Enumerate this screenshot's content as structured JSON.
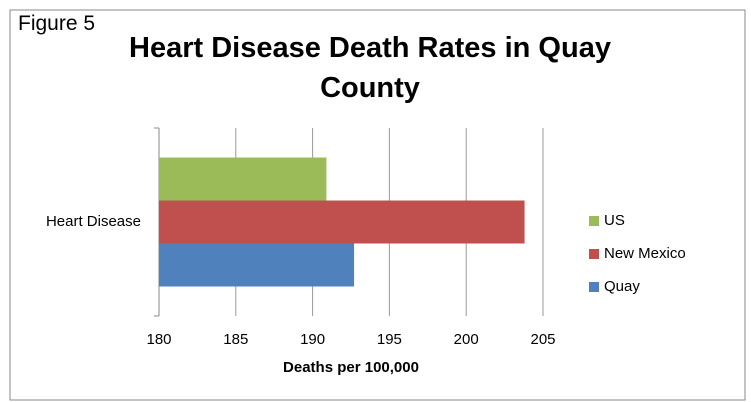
{
  "chart_data": {
    "type": "bar",
    "orientation": "horizontal",
    "annotation": "Figure 5",
    "title": "Heart Disease Death Rates in Quay County",
    "x_label": "Deaths per 100,000",
    "categories": [
      "Heart Disease"
    ],
    "series": [
      {
        "name": "US",
        "color": "#9bbb59",
        "values": [
          190.9
        ]
      },
      {
        "name": "New Mexico",
        "color": "#c0504d",
        "values": [
          203.8
        ]
      },
      {
        "name": "Quay",
        "color": "#4f81bd",
        "values": [
          192.7
        ]
      }
    ],
    "xlim": [
      180,
      205
    ],
    "xticks": [
      180,
      185,
      190,
      195,
      200,
      205
    ],
    "grid": true,
    "legend": "right"
  }
}
